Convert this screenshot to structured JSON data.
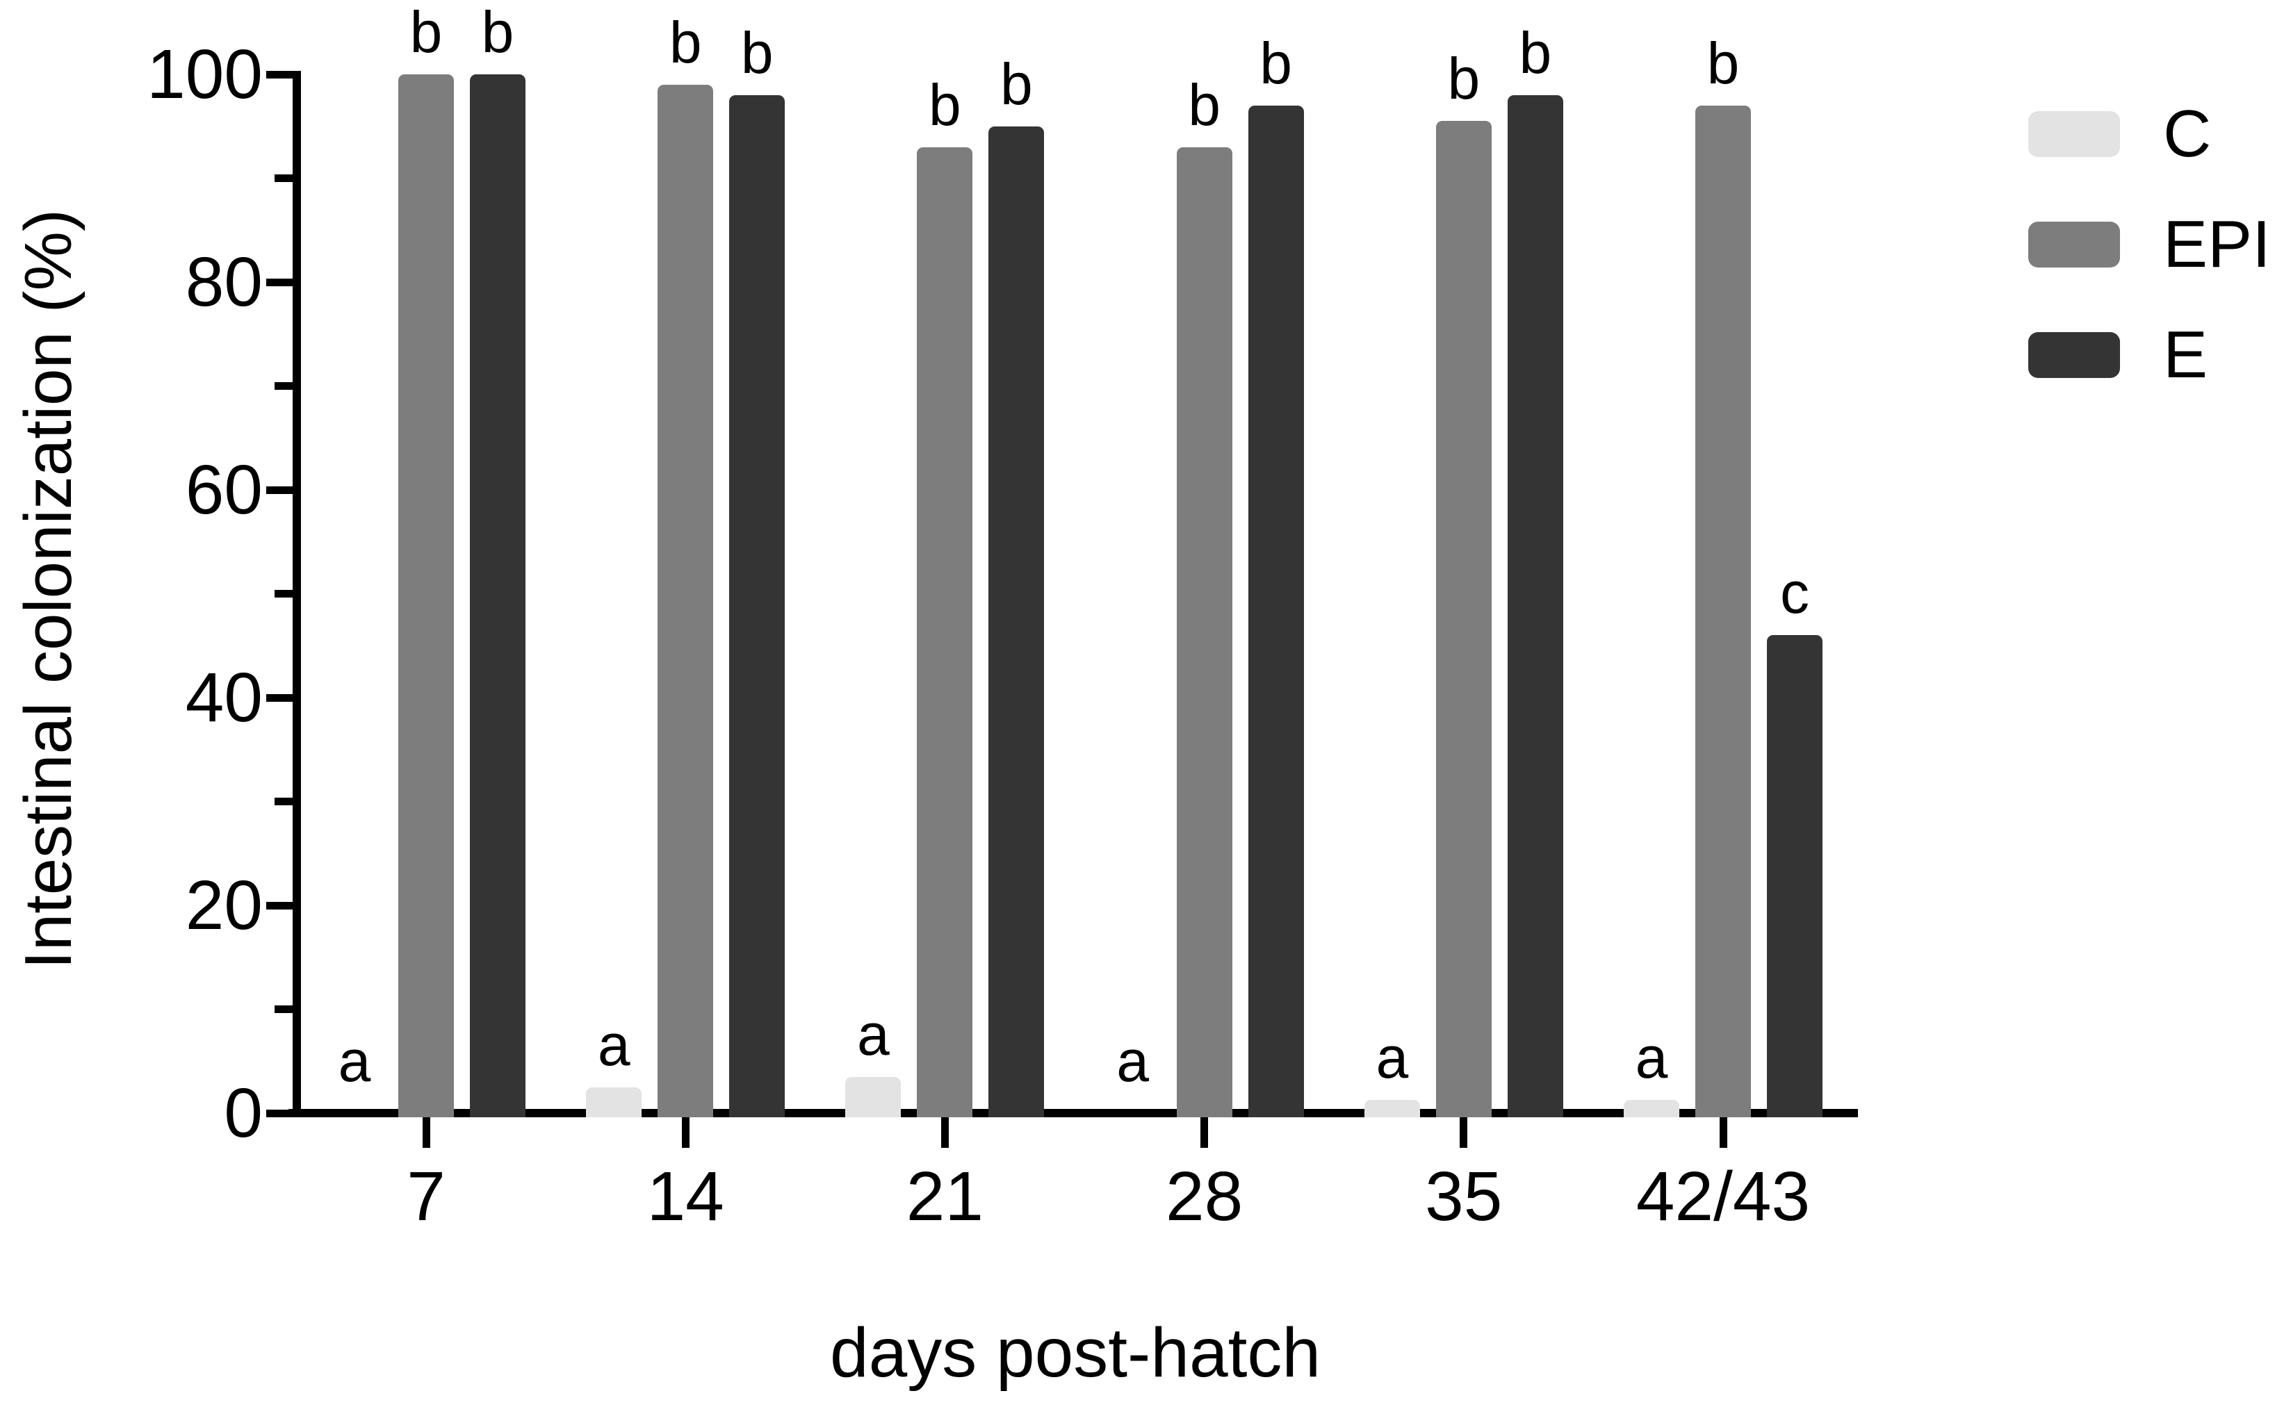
{
  "figure": {
    "y_axis_title": "Intestinal colonization (%)",
    "x_axis_title": "days post-hatch"
  },
  "legend": {
    "position": "right",
    "items": [
      {
        "label": "C",
        "color": "#e3e3e3"
      },
      {
        "label": "EPI",
        "color": "#7d7d7d"
      },
      {
        "label": "E",
        "color": "#343434"
      }
    ]
  },
  "chart_data": {
    "type": "bar",
    "title": "",
    "xlabel": "days post-hatch",
    "ylabel": "Intestinal colonization (%)",
    "categories": [
      "7",
      "14",
      "21",
      "28",
      "35",
      "42/43"
    ],
    "series": [
      {
        "name": "C",
        "color": "#e3e3e3",
        "values": [
          0,
          2.5,
          3.5,
          0,
          1.3,
          1.3
        ],
        "sig_letters": [
          "a",
          "a",
          "a",
          "a",
          "a",
          "a"
        ]
      },
      {
        "name": "EPI",
        "color": "#7d7d7d",
        "values": [
          100,
          99,
          93,
          93,
          95.5,
          97
        ],
        "sig_letters": [
          "b",
          "b",
          "b",
          "b",
          "b",
          "b"
        ]
      },
      {
        "name": "E",
        "color": "#343434",
        "values": [
          100,
          98,
          95,
          97,
          98,
          46
        ],
        "sig_letters": [
          "b",
          "b",
          "b",
          "b",
          "b",
          "c"
        ]
      }
    ],
    "ylim": [
      0,
      100
    ],
    "yticks": [
      0,
      20,
      40,
      60,
      80,
      100
    ],
    "minor_yticks": [
      10,
      30,
      50,
      70,
      90
    ],
    "grid": false,
    "legend_position": "right",
    "axis_color": "#000000"
  }
}
